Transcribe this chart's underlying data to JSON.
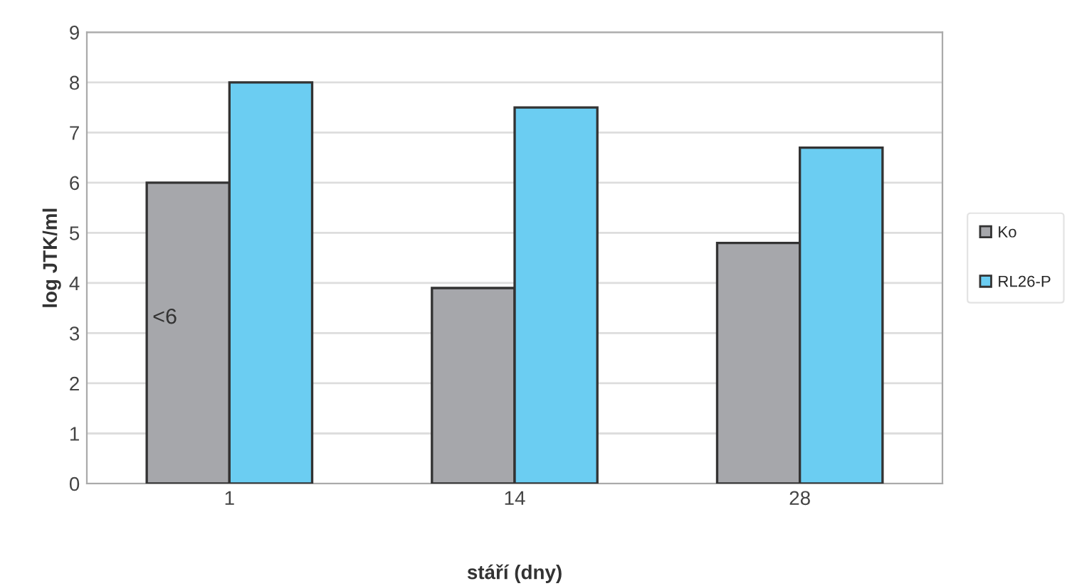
{
  "chart_data": {
    "type": "bar",
    "xlabel": "stáří (dny)",
    "ylabel": "log JTK/ml",
    "categories": [
      "1",
      "14",
      "28"
    ],
    "series": [
      {
        "name": "Ko",
        "color": "#a6a7ab",
        "values": [
          6.0,
          3.9,
          4.8
        ]
      },
      {
        "name": "RL26-P",
        "color": "#6bcdf2",
        "values": [
          8.0,
          7.5,
          6.7
        ]
      }
    ],
    "annotations": [
      {
        "text": "<6",
        "x": "1",
        "y": 3.3
      }
    ],
    "ylim": [
      0,
      9
    ],
    "yticks": [
      0,
      1,
      2,
      3,
      4,
      5,
      6,
      7,
      8,
      9
    ],
    "grid": "y",
    "legend": "right"
  }
}
